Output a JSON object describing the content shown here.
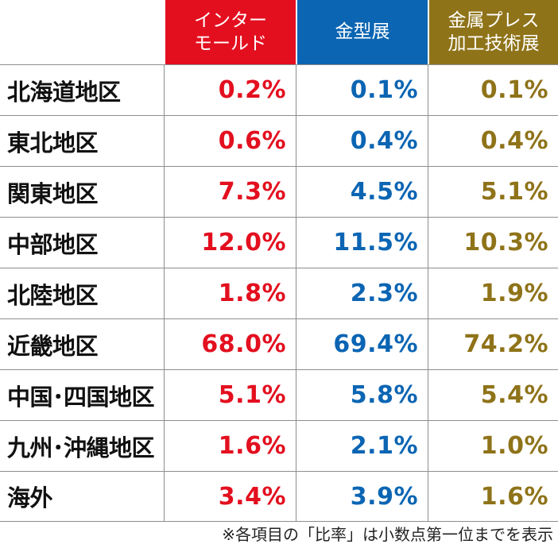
{
  "headers": {
    "col1": "インター\nモールド",
    "col2": "金型展",
    "col3": "金属プレス\n加工技術展"
  },
  "colors": {
    "col1": "#e30f1f",
    "col2": "#0b65b3",
    "col3": "#8f7319"
  },
  "rows": [
    {
      "region": "北海道地区",
      "v1": "0.2%",
      "v2": "0.1%",
      "v3": "0.1%"
    },
    {
      "region": "東北地区",
      "v1": "0.6%",
      "v2": "0.4%",
      "v3": "0.4%"
    },
    {
      "region": "関東地区",
      "v1": "7.3%",
      "v2": "4.5%",
      "v3": "5.1%"
    },
    {
      "region": "中部地区",
      "v1": "12.0%",
      "v2": "11.5%",
      "v3": "10.3%"
    },
    {
      "region": "北陸地区",
      "v1": "1.8%",
      "v2": "2.3%",
      "v3": "1.9%"
    },
    {
      "region": "近畿地区",
      "v1": "68.0%",
      "v2": "69.4%",
      "v3": "74.2%"
    },
    {
      "region": "中国･四国地区",
      "v1": "5.1%",
      "v2": "5.8%",
      "v3": "5.4%"
    },
    {
      "region": "九州･沖縄地区",
      "v1": "1.6%",
      "v2": "2.1%",
      "v3": "1.0%"
    },
    {
      "region": "海外",
      "v1": "3.4%",
      "v2": "3.9%",
      "v3": "1.6%"
    }
  ],
  "note": "※各項目の「比率」は小数点第一位までを表示"
}
